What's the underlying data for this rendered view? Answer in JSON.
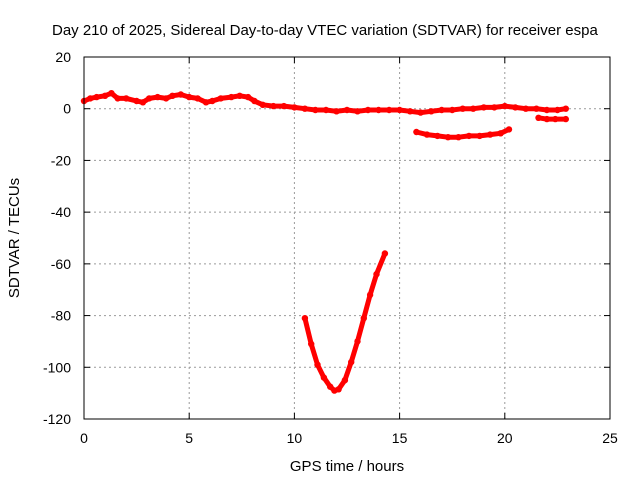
{
  "chart_data": {
    "type": "scatter",
    "title": "Day 210 of 2025, Sidereal Day-to-day VTEC variation (SDTVAR) for receiver espa",
    "xlabel": "GPS time / hours",
    "ylabel": "SDTVAR / TECUs",
    "xlim": [
      0,
      25
    ],
    "ylim": [
      -120,
      20
    ],
    "xticks": [
      0,
      5,
      10,
      15,
      20,
      25
    ],
    "yticks": [
      20,
      0,
      -20,
      -40,
      -60,
      -80,
      -100,
      -120
    ],
    "grid": true,
    "color": "#ff0000",
    "series": [
      {
        "name": "main-track",
        "x": [
          0,
          0.3,
          0.6,
          1.0,
          1.3,
          1.6,
          2.0,
          2.5,
          2.8,
          3.1,
          3.5,
          3.9,
          4.2,
          4.6,
          5.0,
          5.4,
          5.8,
          6.1,
          6.5,
          7.0,
          7.4,
          7.8,
          8.1,
          8.5,
          9.0,
          9.5,
          10.0,
          10.5,
          11.0,
          11.5,
          12.0,
          12.5,
          13.0,
          13.5,
          14.0,
          14.5,
          15.0,
          15.5,
          16.0,
          16.5,
          17.0,
          17.5,
          18.0,
          18.5,
          19.0,
          19.5,
          20.0,
          20.5,
          21.0,
          21.5,
          22.0,
          22.5,
          22.9
        ],
        "y": [
          3,
          4,
          4.5,
          5,
          6,
          4,
          4,
          3,
          2.5,
          4,
          4.5,
          4,
          5,
          5.5,
          4.5,
          4,
          2.5,
          3,
          4,
          4.5,
          5,
          4.5,
          3,
          1.5,
          1,
          1,
          0.5,
          0,
          -0.5,
          -0.5,
          -1,
          -0.5,
          -1,
          -0.5,
          -0.5,
          -0.5,
          -0.5,
          -1,
          -1.5,
          -1,
          -0.5,
          -0.5,
          0,
          0,
          0.5,
          0.5,
          1,
          0.5,
          0,
          0,
          -0.5,
          -0.5,
          0
        ]
      },
      {
        "name": "lower-branch-late",
        "x": [
          15.8,
          16.3,
          16.8,
          17.3,
          17.8,
          18.3,
          18.8,
          19.3,
          19.8,
          20.2
        ],
        "y": [
          -9,
          -10,
          -10.5,
          -11,
          -11,
          -10.5,
          -10.5,
          -10,
          -9.5,
          -8
        ]
      },
      {
        "name": "end-branch",
        "x": [
          21.6,
          22.0,
          22.4,
          22.9
        ],
        "y": [
          -3.5,
          -4,
          -4,
          -4
        ]
      },
      {
        "name": "v-shaped-dip",
        "x": [
          10.5,
          10.8,
          11.1,
          11.4,
          11.7,
          11.9,
          12.1,
          12.4,
          12.7,
          13.0,
          13.3,
          13.6,
          13.9,
          14.3
        ],
        "y": [
          -81,
          -91,
          -99,
          -104,
          -107.5,
          -109,
          -108.5,
          -105,
          -98,
          -90,
          -81,
          -72,
          -64,
          -56
        ]
      }
    ]
  }
}
